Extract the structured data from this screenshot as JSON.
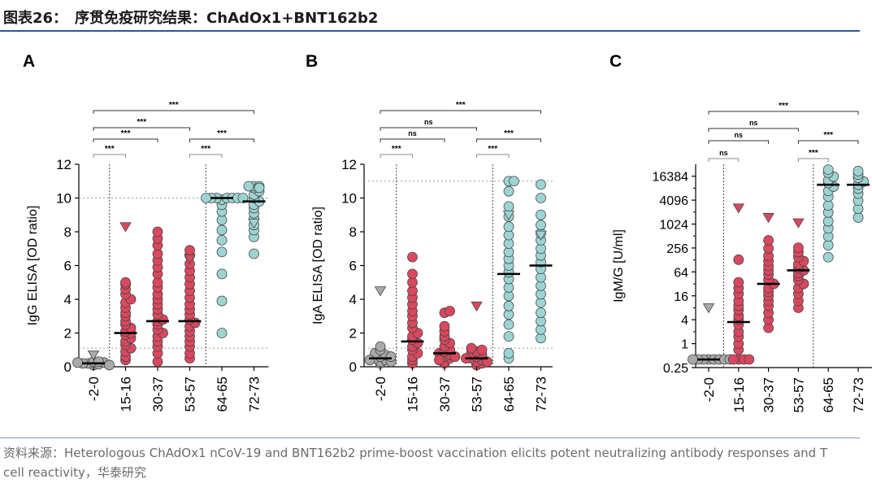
{
  "figure": {
    "title": "图表26：　序贯免疫研究结果：ChAdOx1+BNT162b2",
    "source": "资料来源：Heterologous ChAdOx1 nCoV-19 and BNT162b2 prime-boost vaccination elicits potent neutralizing antibody responses and T cell reactivity，华泰研究"
  },
  "colors": {
    "grey": "#a9a9a9",
    "red": "#d9485f",
    "teal": "#9ed3d3",
    "edge": "#444444",
    "bracket": "#333333"
  },
  "chart_data": [
    {
      "panel": "A",
      "type": "scatter",
      "scale": "linear",
      "ylabel": "IgG ELISA [OD ratio]",
      "ylim": [
        0,
        12
      ],
      "yticks": [
        0,
        2,
        4,
        6,
        8,
        10,
        12
      ],
      "ytick_labels": [
        "0",
        "2",
        "4",
        "6",
        "8",
        "10",
        "12"
      ],
      "categories": [
        "-2-0",
        "15-16",
        "30-37",
        "53-57",
        "64-65",
        "72-73"
      ],
      "ref_lines": [
        10,
        1.1
      ],
      "group_dividers_after": [
        0,
        3
      ],
      "series": [
        {
          "category": "-2-0",
          "color": "grey",
          "median": 0.2,
          "points": [
            0.1,
            0.15,
            0.2,
            0.25,
            0.3,
            0.2,
            0.1,
            0.3,
            0.25
          ],
          "triangles": [
            0.7
          ]
        },
        {
          "category": "15-16",
          "color": "red",
          "median": 2.0,
          "points": [
            0.4,
            0.6,
            0.9,
            1.1,
            1.3,
            1.5,
            1.7,
            1.9,
            2.0,
            2.1,
            2.3,
            2.5,
            2.7,
            3.0,
            3.2,
            3.5,
            3.8,
            4.0,
            4.3,
            4.6,
            4.9,
            5.0
          ],
          "triangles": [
            8.3
          ]
        },
        {
          "category": "30-37",
          "color": "red",
          "median": 2.7,
          "points": [
            0.3,
            0.8,
            1.2,
            1.5,
            1.8,
            2.0,
            2.2,
            2.5,
            2.7,
            2.8,
            3.1,
            3.4,
            3.7,
            4.0,
            4.3,
            4.7,
            5.0,
            5.5,
            5.9,
            6.3,
            6.7,
            7.2,
            7.6,
            8.0
          ],
          "triangles": []
        },
        {
          "category": "53-57",
          "color": "red",
          "median": 2.7,
          "points": [
            0.5,
            0.8,
            1.2,
            1.5,
            1.8,
            2.1,
            2.4,
            2.6,
            2.8,
            3.1,
            3.4,
            3.7,
            4.1,
            4.5,
            4.9,
            5.3,
            5.7,
            6.1,
            6.6,
            6.9
          ],
          "triangles": [
            6.4
          ]
        },
        {
          "category": "64-65",
          "color": "teal",
          "median": 10.0,
          "points": [
            2.0,
            3.9,
            5.5,
            6.8,
            7.5,
            8.1,
            8.7,
            9.2,
            9.6,
            9.9,
            10.0,
            10.0,
            10.0,
            10.0,
            10.0,
            10.0,
            10.0
          ],
          "triangles": []
        },
        {
          "category": "72-73",
          "color": "teal",
          "median": 9.8,
          "points": [
            6.7,
            7.7,
            8.1,
            8.4,
            8.8,
            9.1,
            9.4,
            9.6,
            9.8,
            10.0,
            10.2,
            10.4,
            10.6,
            10.7,
            10.7,
            10.7,
            10.6
          ],
          "triangles": [
            8.5
          ]
        }
      ],
      "brackets": [
        {
          "from": "-2-0",
          "to": "15-16",
          "label": "***"
        },
        {
          "from": "53-57",
          "to": "64-65",
          "label": "***"
        },
        {
          "from": "-2-0",
          "to": "30-37",
          "label": "***"
        },
        {
          "from": "53-57",
          "to": "72-73",
          "label": "***"
        },
        {
          "from": "-2-0",
          "to": "53-57",
          "label": "***"
        },
        {
          "from": "-2-0",
          "to": "72-73",
          "label": "***"
        }
      ]
    },
    {
      "panel": "B",
      "type": "scatter",
      "scale": "linear",
      "ylabel": "IgA ELISA [OD ratio]",
      "ylim": [
        0,
        12
      ],
      "yticks": [
        0,
        2,
        4,
        6,
        8,
        10,
        12
      ],
      "ytick_labels": [
        "0",
        "2",
        "4",
        "6",
        "8",
        "10",
        "12"
      ],
      "categories": [
        "-2-0",
        "15-16",
        "30-37",
        "53-57",
        "64-65",
        "72-73"
      ],
      "ref_lines": [
        11,
        1.1
      ],
      "group_dividers_after": [
        0,
        3
      ],
      "series": [
        {
          "category": "-2-0",
          "color": "grey",
          "median": 0.5,
          "points": [
            0.2,
            0.3,
            0.4,
            0.5,
            0.6,
            0.7,
            0.8,
            1.0,
            1.2,
            0.3,
            0.4,
            0.6
          ],
          "triangles": [
            4.5
          ]
        },
        {
          "category": "15-16",
          "color": "red",
          "median": 1.5,
          "points": [
            0.2,
            0.4,
            0.6,
            0.8,
            1.0,
            1.2,
            1.4,
            1.6,
            1.8,
            2.0,
            2.3,
            2.6,
            3.0,
            3.3,
            3.7,
            4.1,
            4.5,
            5.0,
            5.5,
            6.5
          ],
          "triangles": []
        },
        {
          "category": "30-37",
          "color": "red",
          "median": 0.8,
          "points": [
            0.2,
            0.3,
            0.5,
            0.6,
            0.7,
            0.8,
            0.9,
            1.0,
            1.2,
            1.4,
            1.6,
            1.8,
            2.1,
            2.4,
            3.2,
            3.3,
            0.4,
            0.6
          ],
          "triangles": []
        },
        {
          "category": "53-57",
          "color": "red",
          "median": 0.5,
          "points": [
            0.1,
            0.2,
            0.3,
            0.4,
            0.5,
            0.6,
            0.7,
            0.8,
            0.9,
            1.0,
            1.1,
            0.3,
            0.5
          ],
          "triangles": [
            3.6
          ]
        },
        {
          "category": "64-65",
          "color": "teal",
          "median": 5.5,
          "points": [
            0.5,
            0.8,
            1.8,
            2.5,
            3.1,
            3.6,
            4.2,
            4.7,
            5.2,
            5.6,
            6.0,
            6.4,
            6.8,
            7.3,
            7.8,
            8.3,
            8.9,
            9.5,
            10.4,
            11.0,
            11.0
          ],
          "triangles": [
            9.0
          ]
        },
        {
          "category": "72-73",
          "color": "teal",
          "median": 6.0,
          "points": [
            1.7,
            2.2,
            2.7,
            3.2,
            3.8,
            4.3,
            4.8,
            5.3,
            5.8,
            6.2,
            6.6,
            7.0,
            7.5,
            7.9,
            8.4,
            9.0,
            10.0,
            10.8
          ],
          "triangles": [
            7.8
          ]
        }
      ],
      "brackets": [
        {
          "from": "-2-0",
          "to": "15-16",
          "label": "***"
        },
        {
          "from": "53-57",
          "to": "64-65",
          "label": "***"
        },
        {
          "from": "-2-0",
          "to": "30-37",
          "label": "ns"
        },
        {
          "from": "53-57",
          "to": "72-73",
          "label": "***"
        },
        {
          "from": "-2-0",
          "to": "53-57",
          "label": "ns"
        },
        {
          "from": "-2-0",
          "to": "72-73",
          "label": "***"
        }
      ]
    },
    {
      "panel": "C",
      "type": "scatter",
      "scale": "log2",
      "ylabel": "IgM/G [U/ml]",
      "ylim": [
        0.25,
        32768
      ],
      "yticks": [
        0.25,
        1,
        4,
        16,
        64,
        256,
        1024,
        4096,
        16384
      ],
      "ytick_labels": [
        "0.25",
        "1",
        "4",
        "16",
        "64",
        "256",
        "1024",
        "4096",
        "16384"
      ],
      "categories": [
        "-2-0",
        "15-16",
        "30-37",
        "53-57",
        "64-65",
        "72-73"
      ],
      "ref_lines": [],
      "group_dividers_after": [
        0,
        3
      ],
      "series": [
        {
          "category": "-2-0",
          "color": "grey",
          "median": 0.4,
          "points": [
            0.4,
            0.4,
            0.4,
            0.4,
            0.4,
            0.4,
            0.4,
            0.4
          ],
          "triangles": [
            8
          ]
        },
        {
          "category": "15-16",
          "color": "red",
          "median": 3.5,
          "points": [
            0.4,
            0.4,
            0.4,
            0.4,
            0.7,
            1,
            1.5,
            2,
            3,
            4,
            5,
            7,
            9,
            12,
            18,
            25,
            35,
            130
          ],
          "triangles": [
            2600
          ]
        },
        {
          "category": "30-37",
          "color": "red",
          "median": 32,
          "points": [
            2.5,
            4,
            6,
            9,
            12,
            16,
            20,
            25,
            32,
            40,
            55,
            70,
            90,
            120,
            160,
            250,
            400
          ],
          "triangles": [
            1500
          ]
        },
        {
          "category": "53-57",
          "color": "red",
          "median": 70,
          "points": [
            8,
            12,
            18,
            25,
            32,
            40,
            50,
            60,
            70,
            80,
            100,
            120,
            150,
            200,
            260
          ],
          "triangles": [
            1100
          ]
        },
        {
          "category": "64-65",
          "color": "teal",
          "median": 10000,
          "points": [
            150,
            300,
            500,
            800,
            1200,
            2000,
            3000,
            5000,
            7000,
            9000,
            11000,
            13000,
            16000,
            20000,
            24000
          ],
          "triangles": []
        },
        {
          "category": "72-73",
          "color": "teal",
          "median": 10000,
          "points": [
            1500,
            2500,
            4000,
            6000,
            8000,
            10000,
            12000,
            15000,
            18000,
            22000
          ],
          "triangles": []
        }
      ],
      "brackets": [
        {
          "from": "-2-0",
          "to": "15-16",
          "label": "ns"
        },
        {
          "from": "53-57",
          "to": "64-65",
          "label": "***"
        },
        {
          "from": "-2-0",
          "to": "30-37",
          "label": "ns"
        },
        {
          "from": "53-57",
          "to": "72-73",
          "label": "***"
        },
        {
          "from": "-2-0",
          "to": "53-57",
          "label": "ns"
        },
        {
          "from": "-2-0",
          "to": "72-73",
          "label": "***"
        }
      ]
    }
  ]
}
